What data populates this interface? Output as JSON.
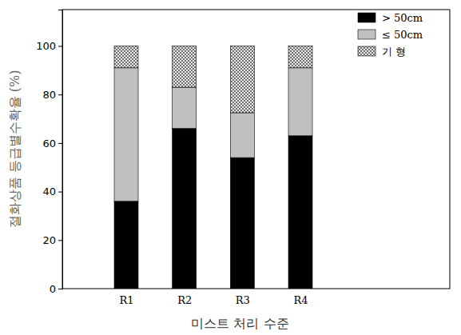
{
  "chart_data": {
    "type": "bar",
    "stacked": true,
    "x_label": "미스트   처리 수준",
    "y_label": "절화상품 등급별수확율 (%)",
    "categories": [
      "R1",
      "R2",
      "R3",
      "R4"
    ],
    "series": [
      {
        "name": "> 50cm",
        "color": "#000000",
        "values": [
          36,
          66,
          54,
          63
        ]
      },
      {
        "name": "≤ 50cm",
        "color": "#c0c0c0",
        "values": [
          55,
          17,
          18.5,
          28
        ]
      },
      {
        "name": "기 형",
        "color": "#707070",
        "values": [
          9,
          17,
          27.5,
          9
        ]
      }
    ],
    "ylim": [
      0,
      115
    ],
    "yticks": [
      0,
      20,
      40,
      60,
      80,
      100
    ],
    "legend": "upper right",
    "grid": false
  }
}
